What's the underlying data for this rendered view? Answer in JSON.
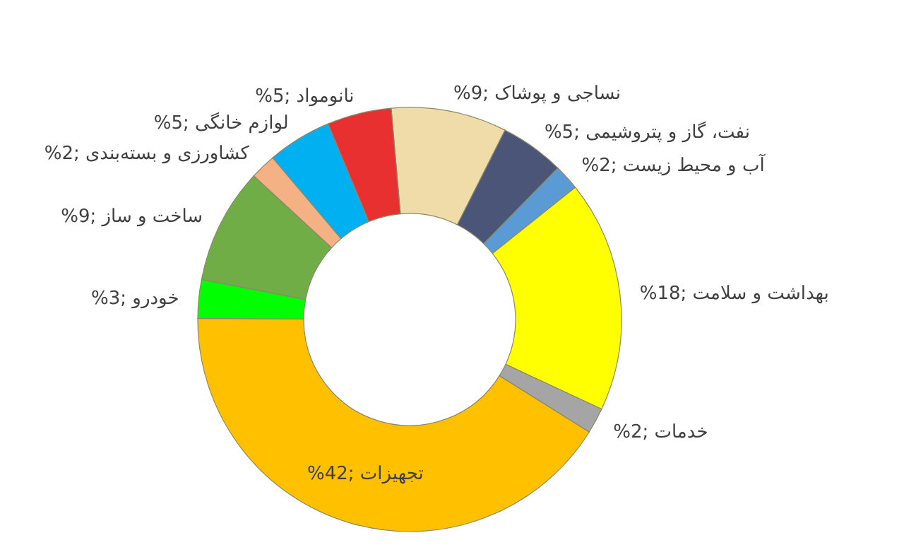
{
  "chart_data": {
    "type": "donut",
    "categories": [
      "نساجی و پوشاک",
      "نفت، گاز و پتروشیمی",
      "آب و محیط زیست",
      "بهداشت و سلامت",
      "خدمات",
      "تجهیزات",
      "خودرو",
      "ساخت و ساز",
      "کشاورزی و بسته‌بندی",
      "لوازم خانگی",
      "نانومواد"
    ],
    "values": [
      9,
      5,
      2,
      18,
      2,
      42,
      3,
      9,
      2,
      5,
      5
    ],
    "colors": [
      "#f0dca8",
      "#4a5578",
      "#5b9bd5",
      "#ffff00",
      "#a5a5a5",
      "#ffc000",
      "#00ff00",
      "#70ad47",
      "#f4b183",
      "#00b0f0",
      "#e83030"
    ],
    "value_labels": [
      "9%",
      "5%",
      "2%",
      "18%",
      "2%",
      "42%",
      "3%",
      "9%",
      "2%",
      "5%",
      "5%"
    ],
    "legend": false
  }
}
